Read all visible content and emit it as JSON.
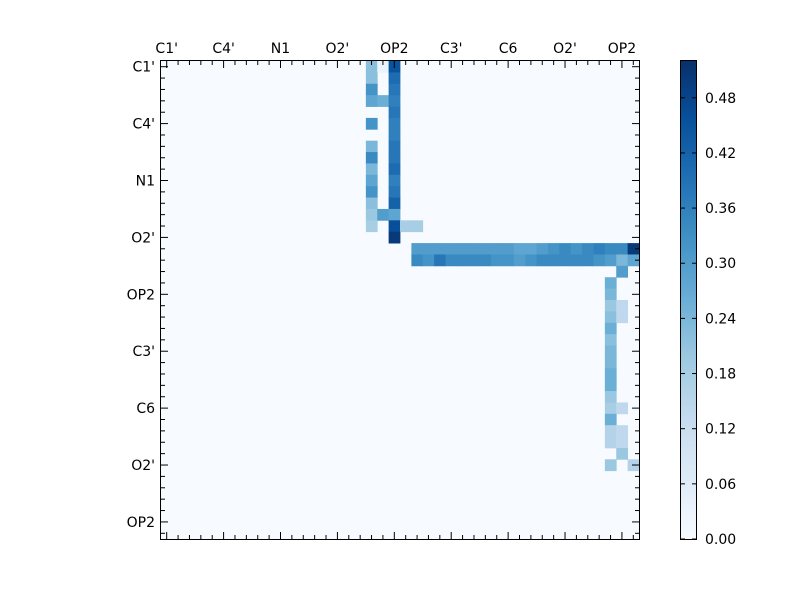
{
  "chart_data": {
    "type": "heatmap",
    "n": 42,
    "x_tick_labels": [
      "C1'",
      "C4'",
      "N1",
      "O2'",
      "OP2",
      "C3'",
      "C6",
      "O2'",
      "OP2"
    ],
    "y_tick_labels": [
      "C1'",
      "C4'",
      "N1",
      "O2'",
      "OP2",
      "C3'",
      "C6",
      "O2'",
      "OP2"
    ],
    "label_positions": [
      0.5,
      5.5,
      10.5,
      15.5,
      20.5,
      25.5,
      30.5,
      35.5,
      40.5
    ],
    "colorbar": {
      "min": 0.0,
      "max": 0.52,
      "ticks": [
        0.0,
        0.06,
        0.12,
        0.18,
        0.24,
        0.3,
        0.36,
        0.42,
        0.48
      ],
      "tick_labels": [
        "0.00",
        "0.06",
        "0.12",
        "0.18",
        "0.24",
        "0.30",
        "0.36",
        "0.42",
        "0.48"
      ],
      "colormap": "Blues",
      "low_color": "#f7fbff",
      "high_color": "#08306b"
    },
    "colorbar_tick_labels": [
      "0.00",
      "0.06",
      "0.12",
      "0.18",
      "0.24",
      "0.30",
      "0.36",
      "0.42",
      "0.48"
    ],
    "cells": [
      [
        0,
        18,
        0.22
      ],
      [
        0,
        19,
        0.03
      ],
      [
        0,
        20,
        0.45
      ],
      [
        1,
        18,
        0.22
      ],
      [
        1,
        20,
        0.4
      ],
      [
        2,
        18,
        0.32
      ],
      [
        2,
        20,
        0.38
      ],
      [
        3,
        18,
        0.28
      ],
      [
        3,
        19,
        0.26
      ],
      [
        3,
        20,
        0.36
      ],
      [
        4,
        20,
        0.38
      ],
      [
        5,
        18,
        0.32
      ],
      [
        5,
        20,
        0.36
      ],
      [
        6,
        20,
        0.36
      ],
      [
        7,
        18,
        0.24
      ],
      [
        7,
        20,
        0.38
      ],
      [
        8,
        18,
        0.34
      ],
      [
        8,
        20,
        0.38
      ],
      [
        9,
        18,
        0.24
      ],
      [
        9,
        20,
        0.4
      ],
      [
        10,
        18,
        0.28
      ],
      [
        10,
        20,
        0.36
      ],
      [
        11,
        18,
        0.32
      ],
      [
        11,
        20,
        0.38
      ],
      [
        12,
        18,
        0.22
      ],
      [
        12,
        20,
        0.42
      ],
      [
        13,
        18,
        0.2
      ],
      [
        13,
        19,
        0.3
      ],
      [
        13,
        20,
        0.28
      ],
      [
        14,
        18,
        0.18
      ],
      [
        14,
        20,
        0.46
      ],
      [
        14,
        21,
        0.18
      ],
      [
        14,
        22,
        0.18
      ],
      [
        15,
        20,
        0.5
      ],
      [
        16,
        22,
        0.3
      ],
      [
        16,
        23,
        0.3
      ],
      [
        16,
        24,
        0.3
      ],
      [
        16,
        25,
        0.3
      ],
      [
        16,
        26,
        0.3
      ],
      [
        16,
        27,
        0.3
      ],
      [
        16,
        28,
        0.3
      ],
      [
        16,
        29,
        0.3
      ],
      [
        16,
        30,
        0.3
      ],
      [
        16,
        31,
        0.28
      ],
      [
        16,
        32,
        0.28
      ],
      [
        16,
        33,
        0.3
      ],
      [
        16,
        34,
        0.32
      ],
      [
        16,
        35,
        0.34
      ],
      [
        16,
        36,
        0.32
      ],
      [
        16,
        37,
        0.34
      ],
      [
        16,
        38,
        0.36
      ],
      [
        16,
        39,
        0.34
      ],
      [
        16,
        40,
        0.34
      ],
      [
        16,
        41,
        0.5
      ],
      [
        17,
        22,
        0.34
      ],
      [
        17,
        23,
        0.32
      ],
      [
        17,
        24,
        0.38
      ],
      [
        17,
        25,
        0.34
      ],
      [
        17,
        26,
        0.34
      ],
      [
        17,
        27,
        0.34
      ],
      [
        17,
        28,
        0.34
      ],
      [
        17,
        29,
        0.32
      ],
      [
        17,
        30,
        0.32
      ],
      [
        17,
        31,
        0.3
      ],
      [
        17,
        32,
        0.32
      ],
      [
        17,
        33,
        0.34
      ],
      [
        17,
        34,
        0.34
      ],
      [
        17,
        35,
        0.34
      ],
      [
        17,
        36,
        0.34
      ],
      [
        17,
        37,
        0.34
      ],
      [
        17,
        38,
        0.32
      ],
      [
        17,
        39,
        0.3
      ],
      [
        17,
        40,
        0.24
      ],
      [
        17,
        41,
        0.28
      ],
      [
        18,
        40,
        0.3
      ],
      [
        19,
        39,
        0.26
      ],
      [
        20,
        39,
        0.24
      ],
      [
        21,
        39,
        0.2
      ],
      [
        21,
        40,
        0.14
      ],
      [
        22,
        39,
        0.22
      ],
      [
        22,
        40,
        0.14
      ],
      [
        23,
        39,
        0.26
      ],
      [
        24,
        39,
        0.22
      ],
      [
        25,
        39,
        0.24
      ],
      [
        26,
        39,
        0.24
      ],
      [
        27,
        39,
        0.26
      ],
      [
        28,
        39,
        0.26
      ],
      [
        29,
        39,
        0.2
      ],
      [
        30,
        39,
        0.18
      ],
      [
        30,
        40,
        0.14
      ],
      [
        31,
        39,
        0.26
      ],
      [
        32,
        39,
        0.16
      ],
      [
        32,
        40,
        0.14
      ],
      [
        33,
        39,
        0.16
      ],
      [
        33,
        40,
        0.14
      ],
      [
        34,
        40,
        0.2
      ],
      [
        35,
        39,
        0.2
      ],
      [
        35,
        41,
        0.16
      ]
    ]
  }
}
